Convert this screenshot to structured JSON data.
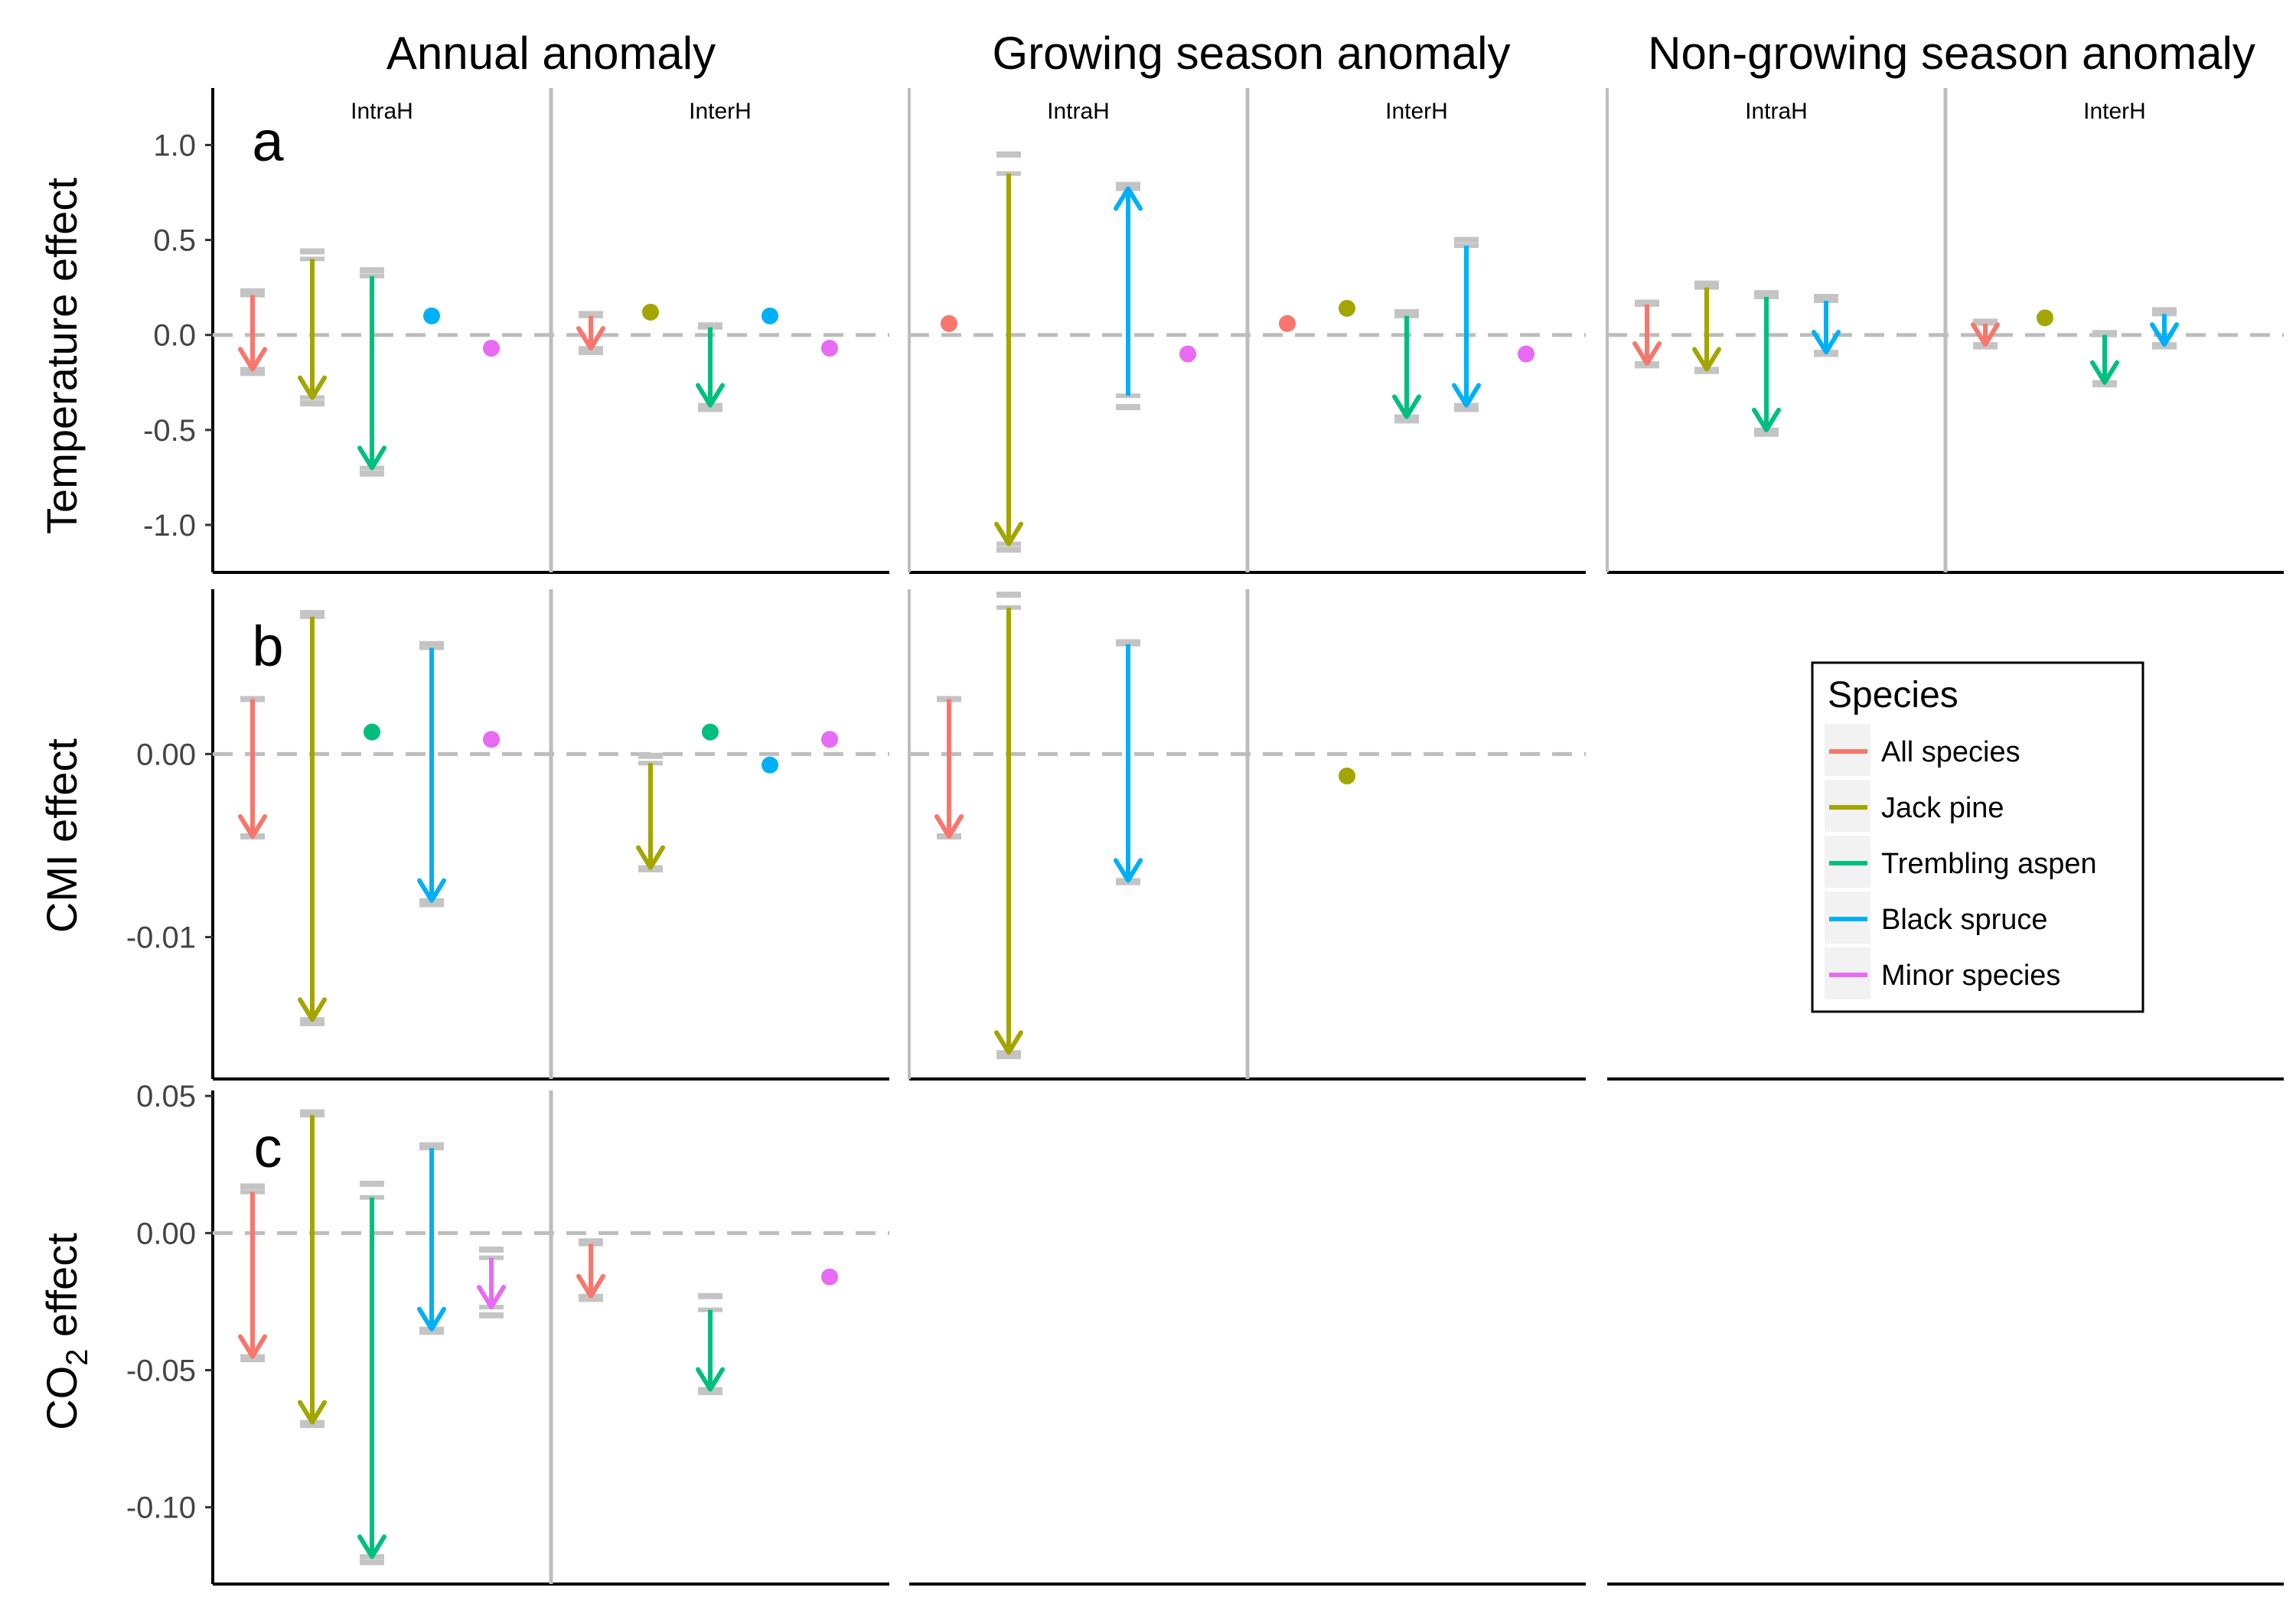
{
  "column_titles": [
    "Annual anomaly",
    "Growing season anomaly",
    "Non-growing season anomaly"
  ],
  "strip_labels": [
    "IntraH",
    "InterH"
  ],
  "row_labels": {
    "a": "Temperature effect",
    "b": "CMI effect",
    "c_prefix": "CO",
    "c_sub": "2",
    "c_suffix": " effect"
  },
  "panel_letters": [
    "a",
    "b",
    "c"
  ],
  "legend": {
    "title": "Species",
    "items": [
      {
        "name": "All species",
        "color": "#F8766D"
      },
      {
        "name": "Jack pine",
        "color": "#A3A500"
      },
      {
        "name": "Trembling aspen",
        "color": "#00BF7D"
      },
      {
        "name": "Black spruce",
        "color": "#00B0F6"
      },
      {
        "name": "Minor species",
        "color": "#E76BF3"
      }
    ]
  },
  "chart_data": {
    "type": "scatter",
    "description_of_marks": "Arrow from first to second estimate; dot when no change; grey bars mark error bounds",
    "rows": [
      {
        "row": "a",
        "ylim": [
          -1.25,
          1.3
        ],
        "yticks": [
          1.0,
          0.5,
          0.0,
          -0.5,
          -1.0
        ],
        "ytick_labels": [
          "1.0",
          "0.5",
          "0.0",
          "-0.5",
          "-1.0"
        ],
        "columns": [
          {
            "IntraH": [
              {
                "species": "All species",
                "from": 0.21,
                "to": -0.18,
                "err_hi": 0.23,
                "err_lo": -0.2
              },
              {
                "species": "Jack pine",
                "from": 0.4,
                "to": -0.33,
                "err_hi": 0.44,
                "err_lo": -0.36
              },
              {
                "species": "Trembling aspen",
                "from": 0.31,
                "to": -0.7,
                "err_hi": 0.34,
                "err_lo": -0.73
              },
              {
                "species": "Black spruce",
                "from": 0.1,
                "to": 0.1,
                "err_hi": null,
                "err_lo": null
              },
              {
                "species": "Minor species",
                "from": -0.07,
                "to": -0.07,
                "err_hi": null,
                "err_lo": null
              }
            ],
            "InterH": [
              {
                "species": "All species",
                "from": 0.1,
                "to": -0.07,
                "err_hi": 0.11,
                "err_lo": -0.09
              },
              {
                "species": "Jack pine",
                "from": 0.12,
                "to": 0.12,
                "err_hi": null,
                "err_lo": null
              },
              {
                "species": "Trembling aspen",
                "from": 0.04,
                "to": -0.37,
                "err_hi": 0.05,
                "err_lo": -0.39
              },
              {
                "species": "Black spruce",
                "from": 0.1,
                "to": 0.1,
                "err_hi": null,
                "err_lo": null
              },
              {
                "species": "Minor species",
                "from": -0.07,
                "to": -0.07,
                "err_hi": null,
                "err_lo": null
              }
            ]
          },
          {
            "IntraH": [
              {
                "species": "All species",
                "from": 0.06,
                "to": 0.06,
                "err_hi": null,
                "err_lo": null
              },
              {
                "species": "Jack pine",
                "from": 0.85,
                "to": -1.1,
                "err_hi": 0.95,
                "err_lo": -1.13
              },
              {
                "species": "Trembling aspen",
                "from": null,
                "to": null,
                "err_hi": null,
                "err_lo": null
              },
              {
                "species": "Black spruce",
                "from": -0.32,
                "to": 0.77,
                "err_hi": 0.79,
                "err_lo": -0.38
              },
              {
                "species": "Minor species",
                "from": -0.1,
                "to": -0.1,
                "err_hi": null,
                "err_lo": null
              }
            ],
            "InterH": [
              {
                "species": "All species",
                "from": 0.06,
                "to": 0.06,
                "err_hi": null,
                "err_lo": null
              },
              {
                "species": "Jack pine",
                "from": 0.14,
                "to": 0.14,
                "err_hi": null,
                "err_lo": null
              },
              {
                "species": "Trembling aspen",
                "from": 0.1,
                "to": -0.43,
                "err_hi": 0.12,
                "err_lo": -0.45
              },
              {
                "species": "Black spruce",
                "from": 0.47,
                "to": -0.37,
                "err_hi": 0.5,
                "err_lo": -0.39
              },
              {
                "species": "Minor species",
                "from": -0.1,
                "to": -0.1,
                "err_hi": null,
                "err_lo": null
              }
            ]
          },
          {
            "IntraH": [
              {
                "species": "All species",
                "from": 0.16,
                "to": -0.15,
                "err_hi": 0.17,
                "err_lo": -0.16
              },
              {
                "species": "Jack pine",
                "from": 0.25,
                "to": -0.18,
                "err_hi": 0.27,
                "err_lo": -0.19
              },
              {
                "species": "Trembling aspen",
                "from": 0.2,
                "to": -0.5,
                "err_hi": 0.22,
                "err_lo": -0.52
              },
              {
                "species": "Black spruce",
                "from": 0.18,
                "to": -0.09,
                "err_hi": 0.2,
                "err_lo": -0.1
              },
              {
                "species": "Minor species",
                "from": null,
                "to": null,
                "err_hi": null,
                "err_lo": null
              }
            ],
            "InterH": [
              {
                "species": "All species",
                "from": 0.06,
                "to": -0.05,
                "err_hi": 0.07,
                "err_lo": -0.06
              },
              {
                "species": "Jack pine",
                "from": 0.09,
                "to": 0.09,
                "err_hi": null,
                "err_lo": null
              },
              {
                "species": "Trembling aspen",
                "from": 0.0,
                "to": -0.25,
                "err_hi": 0.01,
                "err_lo": -0.26
              },
              {
                "species": "Black spruce",
                "from": 0.11,
                "to": -0.05,
                "err_hi": 0.13,
                "err_lo": -0.06
              },
              {
                "species": "Minor species",
                "from": null,
                "to": null,
                "err_hi": null,
                "err_lo": null
              }
            ]
          }
        ]
      },
      {
        "row": "b",
        "ylim": [
          -0.01775,
          0.009
        ],
        "yticks": [
          0.0,
          -0.01
        ],
        "ytick_labels": [
          "0.00",
          "-0.01"
        ],
        "columns": [
          {
            "IntraH": [
              {
                "species": "All species",
                "from": 0.003,
                "to": -0.0045,
                "err_hi": 0.003,
                "err_lo": -0.0045
              },
              {
                "species": "Jack pine",
                "from": 0.0075,
                "to": -0.0145,
                "err_hi": 0.0077,
                "err_lo": -0.0147
              },
              {
                "species": "Trembling aspen",
                "from": 0.0012,
                "to": 0.0012,
                "err_hi": null,
                "err_lo": null
              },
              {
                "species": "Black spruce",
                "from": 0.0058,
                "to": -0.008,
                "err_hi": 0.006,
                "err_lo": -0.0082
              },
              {
                "species": "Minor species",
                "from": 0.0008,
                "to": 0.0008,
                "err_hi": null,
                "err_lo": null
              }
            ],
            "InterH": [
              {
                "species": "All species",
                "from": null,
                "to": null,
                "err_hi": null,
                "err_lo": null
              },
              {
                "species": "Jack pine",
                "from": -0.0005,
                "to": -0.0062,
                "err_hi": -0.0001,
                "err_lo": -0.0063
              },
              {
                "species": "Trembling aspen",
                "from": 0.0012,
                "to": 0.0012,
                "err_hi": null,
                "err_lo": null
              },
              {
                "species": "Black spruce",
                "from": -0.0006,
                "to": -0.0006,
                "err_hi": null,
                "err_lo": null
              },
              {
                "species": "Minor species",
                "from": 0.0008,
                "to": 0.0008,
                "err_hi": null,
                "err_lo": null
              }
            ]
          },
          {
            "IntraH": [
              {
                "species": "All species",
                "from": 0.003,
                "to": -0.0045,
                "err_hi": 0.003,
                "err_lo": -0.0045
              },
              {
                "species": "Jack pine",
                "from": 0.008,
                "to": -0.0163,
                "err_hi": 0.0087,
                "err_lo": -0.0165
              },
              {
                "species": "Trembling aspen",
                "from": null,
                "to": null,
                "err_hi": null,
                "err_lo": null
              },
              {
                "species": "Black spruce",
                "from": 0.006,
                "to": -0.0069,
                "err_hi": 0.0061,
                "err_lo": -0.007
              },
              {
                "species": "Minor species",
                "from": null,
                "to": null,
                "err_hi": null,
                "err_lo": null
              }
            ],
            "InterH": [
              {
                "species": "All species",
                "from": null,
                "to": null,
                "err_hi": null,
                "err_lo": null
              },
              {
                "species": "Jack pine",
                "from": -0.0012,
                "to": -0.0012,
                "err_hi": null,
                "err_lo": null
              },
              {
                "species": "Trembling aspen",
                "from": null,
                "to": null,
                "err_hi": null,
                "err_lo": null
              },
              {
                "species": "Black spruce",
                "from": null,
                "to": null,
                "err_hi": null,
                "err_lo": null
              },
              {
                "species": "Minor species",
                "from": null,
                "to": null,
                "err_hi": null,
                "err_lo": null
              }
            ]
          }
        ]
      },
      {
        "row": "c",
        "ylim": [
          -0.128,
          0.052
        ],
        "yticks": [
          0.05,
          0.0,
          -0.05,
          -0.1
        ],
        "ytick_labels": [
          "0.05",
          "0.00",
          "-0.05",
          "-0.10"
        ],
        "columns": [
          {
            "IntraH": [
              {
                "species": "All species",
                "from": 0.015,
                "to": -0.045,
                "err_hi": 0.017,
                "err_lo": -0.046
              },
              {
                "species": "Jack pine",
                "from": 0.043,
                "to": -0.069,
                "err_hi": 0.044,
                "err_lo": -0.07
              },
              {
                "species": "Trembling aspen",
                "from": 0.013,
                "to": -0.118,
                "err_hi": 0.018,
                "err_lo": -0.12
              },
              {
                "species": "Black spruce",
                "from": 0.031,
                "to": -0.035,
                "err_hi": 0.032,
                "err_lo": -0.036
              },
              {
                "species": "Minor species",
                "from": -0.009,
                "to": -0.027,
                "err_hi": -0.006,
                "err_lo": -0.03
              }
            ],
            "InterH": [
              {
                "species": "All species",
                "from": -0.004,
                "to": -0.023,
                "err_hi": -0.003,
                "err_lo": -0.024
              },
              {
                "species": "Jack pine",
                "from": null,
                "to": null,
                "err_hi": null,
                "err_lo": null
              },
              {
                "species": "Trembling aspen",
                "from": -0.028,
                "to": -0.057,
                "err_hi": -0.023,
                "err_lo": -0.058
              },
              {
                "species": "Black spruce",
                "from": null,
                "to": null,
                "err_hi": null,
                "err_lo": null
              },
              {
                "species": "Minor species",
                "from": -0.016,
                "to": -0.016,
                "err_hi": null,
                "err_lo": null
              }
            ]
          }
        ]
      }
    ]
  }
}
